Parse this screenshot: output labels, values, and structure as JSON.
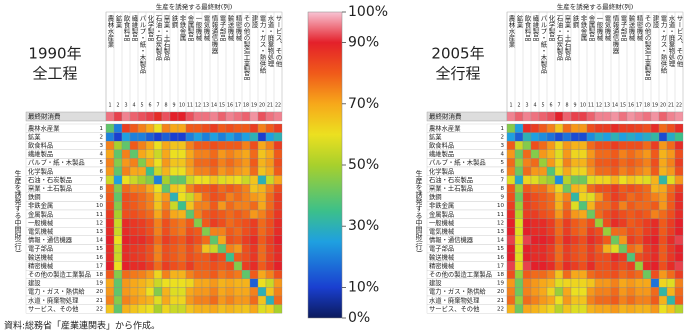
{
  "chart_data": [
    {
      "type": "heatmap",
      "title": "1990年",
      "subtitle": "全工程",
      "x_label": "生産を誘発する最終財(列)",
      "y_label": "生産を誘発する中間財(行)",
      "header_row": "最終財消費",
      "columns": [
        "農林水産業",
        "鉱業",
        "飲食料品",
        "繊維製品",
        "パルプ・紙・木製品",
        "化学製品",
        "石油・石炭製品",
        "窯業・土石製品",
        "鉄鋼",
        "非鉄金属",
        "金属製品",
        "一般機械",
        "電気機械",
        "情報通信機器",
        "電子部品",
        "輸送機械",
        "精密機械",
        "その他の製造工業製品",
        "建設",
        "電力・ガス・熱供給",
        "水道・廃棄物処理",
        "サービス、その他"
      ],
      "column_numbers": [
        1,
        2,
        3,
        4,
        5,
        6,
        7,
        8,
        9,
        10,
        11,
        12,
        13,
        14,
        15,
        16,
        17,
        18,
        19,
        20,
        21,
        22
      ],
      "rows": [
        "農林水産業",
        "鉱業",
        "飲食料品",
        "繊維製品",
        "パルプ・紙・木製品",
        "化学製品",
        "石油・石炭製品",
        "窯業・土石製品",
        "鉄鋼",
        "非鉄金属",
        "金属製品",
        "一般機械",
        "電気機械",
        "情報・通信機器",
        "電子部品",
        "輸送機械",
        "精密機械",
        "その他の製造工業製品",
        "建設",
        "電力・ガス・熱供給",
        "水道・廃棄物処理",
        "サービス、その他"
      ],
      "row_numbers": [
        1,
        2,
        3,
        4,
        5,
        6,
        7,
        8,
        9,
        10,
        11,
        12,
        13,
        14,
        15,
        16,
        17,
        18,
        19,
        20,
        21,
        22
      ],
      "header_values": [
        95,
        92,
        96,
        94,
        93,
        92,
        88,
        93,
        90,
        90,
        93,
        95,
        95,
        96,
        94,
        96,
        95,
        94,
        97,
        93,
        95,
        96
      ],
      "values": [
        [
          40,
          20,
          85,
          80,
          75,
          70,
          60,
          75,
          70,
          70,
          80,
          80,
          82,
          85,
          80,
          82,
          80,
          80,
          85,
          75,
          80,
          85
        ],
        [
          20,
          10,
          25,
          20,
          20,
          15,
          10,
          15,
          10,
          10,
          20,
          25,
          20,
          25,
          20,
          25,
          20,
          25,
          30,
          10,
          25,
          30
        ],
        [
          75,
          50,
          40,
          80,
          75,
          70,
          60,
          70,
          65,
          65,
          75,
          80,
          80,
          82,
          80,
          80,
          80,
          75,
          82,
          70,
          75,
          85
        ],
        [
          70,
          40,
          75,
          40,
          70,
          65,
          55,
          70,
          60,
          60,
          70,
          75,
          75,
          78,
          72,
          75,
          72,
          70,
          78,
          65,
          70,
          80
        ],
        [
          75,
          45,
          72,
          75,
          45,
          70,
          60,
          72,
          65,
          65,
          72,
          78,
          78,
          80,
          75,
          78,
          75,
          72,
          80,
          68,
          72,
          82
        ],
        [
          72,
          40,
          75,
          70,
          70,
          35,
          55,
          68,
          60,
          60,
          70,
          75,
          75,
          78,
          72,
          75,
          72,
          70,
          78,
          65,
          70,
          80
        ],
        [
          55,
          25,
          60,
          55,
          50,
          45,
          20,
          50,
          40,
          40,
          55,
          60,
          60,
          65,
          58,
          62,
          60,
          55,
          65,
          30,
          55,
          70
        ],
        [
          78,
          45,
          78,
          75,
          75,
          70,
          60,
          40,
          65,
          62,
          75,
          80,
          80,
          82,
          78,
          80,
          78,
          75,
          65,
          68,
          75,
          82
        ],
        [
          80,
          40,
          82,
          80,
          78,
          75,
          65,
          72,
          30,
          60,
          55,
          70,
          78,
          82,
          80,
          75,
          78,
          75,
          72,
          70,
          78,
          85
        ],
        [
          82,
          45,
          82,
          80,
          78,
          75,
          65,
          75,
          55,
          35,
          65,
          75,
          75,
          80,
          72,
          78,
          75,
          75,
          78,
          70,
          78,
          85
        ],
        [
          85,
          50,
          82,
          82,
          80,
          78,
          70,
          78,
          70,
          68,
          40,
          75,
          80,
          82,
          80,
          78,
          80,
          78,
          72,
          75,
          80,
          86
        ],
        [
          88,
          55,
          88,
          86,
          85,
          82,
          75,
          82,
          78,
          76,
          80,
          45,
          80,
          85,
          82,
          78,
          80,
          82,
          85,
          78,
          82,
          88
        ],
        [
          88,
          55,
          88,
          86,
          85,
          82,
          75,
          82,
          78,
          76,
          82,
          80,
          45,
          75,
          75,
          80,
          78,
          82,
          85,
          78,
          82,
          88
        ],
        [
          90,
          60,
          90,
          88,
          88,
          85,
          78,
          85,
          82,
          80,
          85,
          82,
          78,
          40,
          70,
          82,
          80,
          85,
          88,
          80,
          85,
          90
        ],
        [
          88,
          55,
          88,
          86,
          85,
          82,
          75,
          82,
          80,
          78,
          82,
          78,
          65,
          55,
          40,
          75,
          72,
          82,
          86,
          78,
          84,
          88
        ],
        [
          88,
          55,
          88,
          86,
          85,
          82,
          75,
          82,
          80,
          78,
          82,
          80,
          80,
          85,
          82,
          35,
          80,
          82,
          86,
          78,
          84,
          88
        ],
        [
          90,
          60,
          90,
          88,
          88,
          85,
          78,
          85,
          82,
          80,
          85,
          80,
          80,
          82,
          80,
          82,
          45,
          85,
          88,
          80,
          85,
          90
        ],
        [
          80,
          45,
          78,
          76,
          75,
          72,
          62,
          75,
          68,
          68,
          75,
          78,
          78,
          80,
          76,
          78,
          76,
          40,
          80,
          70,
          75,
          82
        ],
        [
          70,
          40,
          72,
          70,
          68,
          65,
          55,
          60,
          60,
          60,
          62,
          70,
          70,
          72,
          68,
          70,
          68,
          68,
          15,
          60,
          55,
          72
        ],
        [
          72,
          40,
          72,
          70,
          68,
          60,
          45,
          68,
          58,
          58,
          70,
          72,
          72,
          75,
          70,
          72,
          70,
          70,
          75,
          30,
          65,
          75
        ],
        [
          75,
          45,
          75,
          72,
          70,
          68,
          58,
          70,
          62,
          62,
          72,
          75,
          75,
          78,
          72,
          75,
          72,
          72,
          78,
          65,
          30,
          78
        ],
        [
          65,
          40,
          68,
          65,
          62,
          60,
          50,
          62,
          55,
          55,
          65,
          68,
          68,
          70,
          66,
          68,
          66,
          65,
          70,
          58,
          62,
          50
        ]
      ]
    },
    {
      "type": "heatmap",
      "title": "2005年",
      "subtitle": "全行程",
      "x_label": "生産を誘発する最終財(列)",
      "y_label": "生産を誘発する中間財(行)",
      "header_row": "最終財消費",
      "columns": [
        "農林水産業",
        "鉱業",
        "飲食料品",
        "繊維製品",
        "パルプ・紙・木製品",
        "化学製品",
        "石油・石炭製品",
        "窯業・土石製品",
        "鉄鋼",
        "非鉄金属",
        "金属製品",
        "一般機械",
        "電気機械",
        "情報通信機器",
        "電子部品",
        "輸送機械",
        "精密機械",
        "その他の製造工業製品",
        "建設",
        "電力・ガス・熱供給",
        "水道・廃棄物処理",
        "サービス、その他"
      ],
      "column_numbers": [
        1,
        2,
        3,
        4,
        5,
        6,
        7,
        8,
        9,
        10,
        11,
        12,
        13,
        14,
        15,
        16,
        17,
        18,
        19,
        20,
        21,
        22
      ],
      "rows": [
        "農林水産業",
        "鉱業",
        "飲食料品",
        "繊維製品",
        "パルプ・紙・木製品",
        "化学製品",
        "石油・石炭製品",
        "窯業・土石製品",
        "鉄鋼",
        "非鉄金属",
        "金属製品",
        "一般機械",
        "電気機械",
        "情報・通信機器",
        "電子部品",
        "輸送機械",
        "精密機械",
        "その他の製造工業製品",
        "建設",
        "電力・ガス・熱供給",
        "水道・廃棄物処理",
        "サービス、その他"
      ],
      "row_numbers": [
        1,
        2,
        3,
        4,
        5,
        6,
        7,
        8,
        9,
        10,
        11,
        12,
        13,
        14,
        15,
        16,
        17,
        18,
        19,
        20,
        21,
        22
      ],
      "header_values": [
        96,
        94,
        96,
        95,
        94,
        93,
        90,
        94,
        92,
        92,
        94,
        96,
        96,
        97,
        95,
        97,
        96,
        95,
        97,
        94,
        96,
        97
      ],
      "values": [
        [
          45,
          25,
          88,
          85,
          80,
          75,
          65,
          78,
          72,
          72,
          82,
          85,
          85,
          88,
          85,
          85,
          84,
          82,
          88,
          78,
          82,
          88
        ],
        [
          25,
          15,
          30,
          25,
          22,
          18,
          12,
          18,
          12,
          12,
          22,
          28,
          25,
          30,
          25,
          28,
          25,
          28,
          32,
          12,
          28,
          35
        ],
        [
          80,
          55,
          45,
          82,
          78,
          72,
          62,
          72,
          68,
          68,
          78,
          82,
          82,
          85,
          82,
          82,
          82,
          78,
          85,
          72,
          78,
          88
        ],
        [
          72,
          42,
          78,
          45,
          72,
          68,
          58,
          72,
          62,
          62,
          72,
          78,
          78,
          80,
          75,
          78,
          75,
          72,
          80,
          68,
          72,
          82
        ],
        [
          78,
          48,
          75,
          78,
          48,
          72,
          62,
          75,
          68,
          68,
          75,
          80,
          80,
          82,
          78,
          80,
          78,
          75,
          82,
          70,
          75,
          85
        ],
        [
          75,
          42,
          78,
          72,
          72,
          38,
          58,
          70,
          62,
          62,
          72,
          78,
          78,
          80,
          75,
          78,
          75,
          72,
          80,
          68,
          72,
          82
        ],
        [
          58,
          28,
          62,
          58,
          52,
          48,
          22,
          52,
          42,
          42,
          58,
          62,
          62,
          68,
          60,
          65,
          62,
          58,
          68,
          32,
          58,
          72
        ],
        [
          80,
          48,
          80,
          78,
          78,
          72,
          62,
          42,
          68,
          65,
          78,
          82,
          82,
          85,
          80,
          82,
          80,
          78,
          68,
          70,
          78,
          85
        ],
        [
          82,
          42,
          85,
          82,
          80,
          78,
          68,
          75,
          32,
          62,
          58,
          72,
          80,
          85,
          82,
          78,
          80,
          78,
          75,
          72,
          80,
          88
        ],
        [
          85,
          48,
          85,
          82,
          80,
          78,
          68,
          78,
          58,
          38,
          68,
          78,
          78,
          82,
          75,
          80,
          78,
          78,
          80,
          72,
          80,
          88
        ],
        [
          88,
          52,
          85,
          85,
          82,
          80,
          72,
          80,
          72,
          70,
          42,
          78,
          82,
          85,
          82,
          80,
          82,
          80,
          75,
          78,
          82,
          88
        ],
        [
          90,
          58,
          90,
          88,
          88,
          85,
          78,
          85,
          80,
          78,
          82,
          48,
          82,
          88,
          85,
          80,
          82,
          85,
          88,
          80,
          85,
          90
        ],
        [
          90,
          58,
          90,
          88,
          88,
          85,
          78,
          85,
          80,
          78,
          85,
          82,
          48,
          78,
          78,
          82,
          80,
          85,
          88,
          80,
          85,
          90
        ],
        [
          92,
          62,
          92,
          90,
          90,
          88,
          80,
          88,
          85,
          82,
          88,
          85,
          80,
          42,
          72,
          85,
          82,
          88,
          90,
          82,
          88,
          92
        ],
        [
          90,
          58,
          90,
          88,
          88,
          85,
          78,
          85,
          82,
          80,
          85,
          80,
          68,
          58,
          42,
          78,
          75,
          85,
          88,
          80,
          86,
          90
        ],
        [
          90,
          58,
          90,
          88,
          88,
          85,
          78,
          85,
          82,
          80,
          85,
          82,
          82,
          88,
          85,
          38,
          82,
          85,
          88,
          80,
          86,
          90
        ],
        [
          92,
          62,
          92,
          90,
          90,
          88,
          80,
          88,
          85,
          82,
          88,
          82,
          82,
          85,
          82,
          85,
          48,
          88,
          90,
          82,
          88,
          92
        ],
        [
          82,
          48,
          80,
          78,
          78,
          75,
          65,
          78,
          70,
          70,
          78,
          80,
          80,
          82,
          78,
          80,
          78,
          42,
          82,
          72,
          78,
          85
        ],
        [
          72,
          42,
          75,
          72,
          70,
          68,
          58,
          62,
          62,
          62,
          65,
          72,
          72,
          75,
          70,
          72,
          70,
          70,
          18,
          62,
          58,
          75
        ],
        [
          75,
          42,
          75,
          72,
          70,
          62,
          48,
          70,
          60,
          60,
          72,
          75,
          75,
          78,
          72,
          75,
          72,
          72,
          78,
          32,
          68,
          78
        ],
        [
          78,
          48,
          78,
          75,
          72,
          70,
          60,
          72,
          65,
          65,
          75,
          78,
          78,
          80,
          75,
          78,
          75,
          75,
          80,
          68,
          32,
          80
        ],
        [
          68,
          42,
          70,
          68,
          65,
          62,
          52,
          65,
          58,
          58,
          68,
          70,
          70,
          72,
          68,
          70,
          68,
          68,
          72,
          60,
          65,
          52
        ]
      ]
    }
  ],
  "colorbar": {
    "lim": [
      0,
      100
    ],
    "ticks": [
      {
        "value": 100,
        "label": "100%"
      },
      {
        "value": 90,
        "label": "90%"
      },
      {
        "value": 70,
        "label": "70%"
      },
      {
        "value": 50,
        "label": "50%"
      },
      {
        "value": 30,
        "label": "30%"
      },
      {
        "value": 10,
        "label": "10%"
      },
      {
        "value": 0,
        "label": "0%"
      }
    ]
  },
  "note": "資料:総務省「産業連関表」から作成。"
}
